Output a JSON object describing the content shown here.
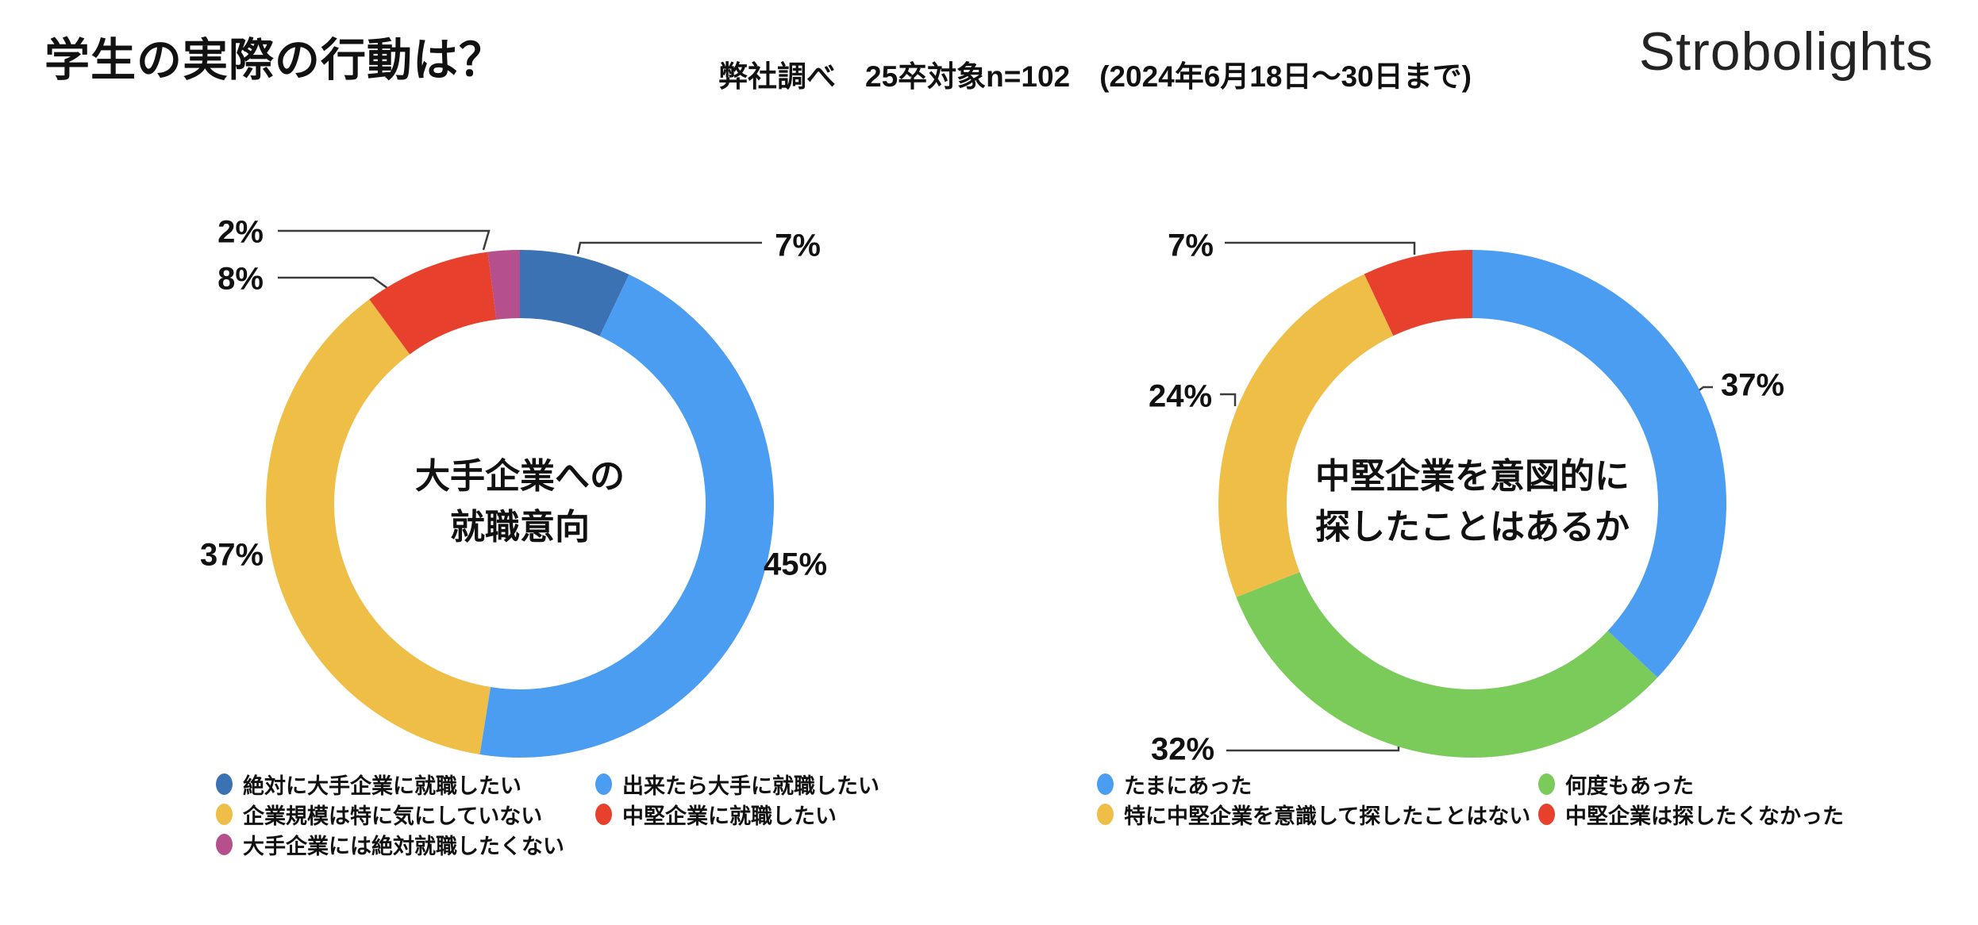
{
  "header": {
    "title": "学生の実際の行動は？",
    "subtitle": "弊社調べ　25卒対象n=102　(2024年6月18日〜30日まで)",
    "logo": "Strobolights"
  },
  "chart_data": [
    {
      "type": "donut",
      "title": "大手企業への就職意向",
      "center_lines": [
        "大手企業への",
        "就職意向"
      ],
      "unit": "%",
      "legend_position": "bottom",
      "segments": [
        {
          "label": "絶対に大手企業に就職したい",
          "value": 7,
          "pct": "7%",
          "color": "#3B72B4"
        },
        {
          "label": "出来たら大手に就職したい",
          "value": 45,
          "pct": "45%",
          "color": "#4A9DF0"
        },
        {
          "label": "企業規模は特に気にしていない",
          "value": 37,
          "pct": "37%",
          "color": "#EEBE47"
        },
        {
          "label": "中堅企業に就職したい",
          "value": 8,
          "pct": "8%",
          "color": "#E7402D"
        },
        {
          "label": "大手企業には絶対就職したくない",
          "value": 2,
          "pct": "2%",
          "color": "#B5508C"
        }
      ],
      "legend_columns": [
        [
          0,
          2,
          4
        ],
        [
          1,
          3
        ]
      ]
    },
    {
      "type": "donut",
      "title": "中堅企業を意図的に探したことはあるか",
      "center_lines": [
        "中堅企業を意図的に",
        "探したことはあるか"
      ],
      "unit": "%",
      "legend_position": "bottom",
      "segments": [
        {
          "label": "たまにあった",
          "value": 37,
          "pct": "37%",
          "color": "#4A9DF0"
        },
        {
          "label": "何度もあった",
          "value": 32,
          "pct": "32%",
          "color": "#7BCB5A"
        },
        {
          "label": "特に中堅企業を意識して探したことはない",
          "value": 24,
          "pct": "24%",
          "color": "#EEBE47"
        },
        {
          "label": "中堅企業は探したくなかった",
          "value": 7,
          "pct": "7%",
          "color": "#E7402D"
        }
      ],
      "legend_columns": [
        [
          0,
          2
        ],
        [
          1,
          3
        ]
      ]
    }
  ]
}
